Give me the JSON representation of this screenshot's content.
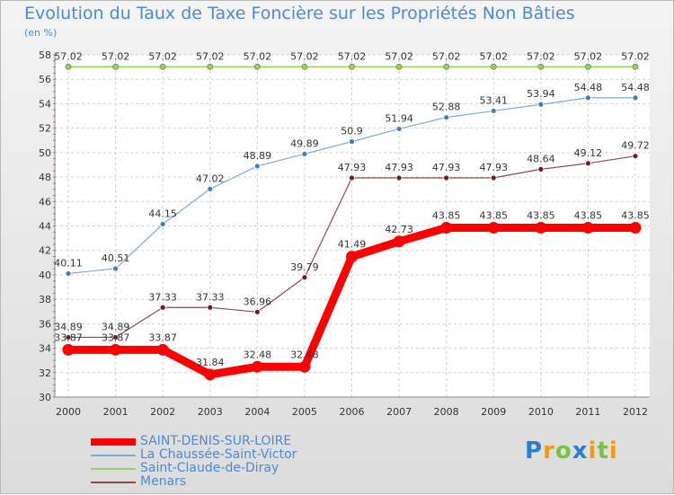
{
  "chart_data": {
    "type": "line",
    "title": "Evolution du Taux de Taxe Foncière sur les Propriétés Non Bâties",
    "ylabel": "(en %)",
    "xlabel": "",
    "x": [
      "2000",
      "2001",
      "2002",
      "2003",
      "2004",
      "2005",
      "2006",
      "2007",
      "2008",
      "2009",
      "2010",
      "2011",
      "2012"
    ],
    "ylim": [
      30,
      58
    ],
    "yticks": [
      30,
      32,
      34,
      36,
      38,
      40,
      42,
      44,
      46,
      48,
      50,
      52,
      54,
      56,
      58
    ],
    "grid": true,
    "series": [
      {
        "name": "SAINT-DENIS-SUR-LOIRE",
        "color": "#ff0000",
        "values": [
          33.87,
          33.87,
          33.87,
          31.84,
          32.48,
          32.48,
          41.49,
          42.73,
          43.85,
          43.85,
          43.85,
          43.85,
          43.85
        ]
      },
      {
        "name": "La Chaussée-Saint-Victor",
        "color": "#7aaad6",
        "values": [
          40.11,
          40.51,
          44.15,
          47.02,
          48.89,
          49.89,
          50.9,
          51.94,
          52.88,
          53.41,
          53.94,
          54.48,
          54.48
        ]
      },
      {
        "name": "Saint-Claude-de-Diray",
        "color": "#9ad060",
        "values": [
          57.02,
          57.02,
          57.02,
          57.02,
          57.02,
          57.02,
          57.02,
          57.02,
          57.02,
          57.02,
          57.02,
          57.02,
          57.02
        ]
      },
      {
        "name": "Menars",
        "color": "#8c4a4a",
        "values": [
          34.89,
          34.89,
          37.33,
          37.33,
          36.96,
          39.79,
          47.93,
          47.93,
          47.93,
          47.93,
          48.64,
          49.12,
          49.72
        ]
      }
    ]
  },
  "brand": {
    "p": "P",
    "r": "r",
    "o": "o",
    "x": "x",
    "i": "i",
    "t": "t",
    "i2": "i"
  }
}
